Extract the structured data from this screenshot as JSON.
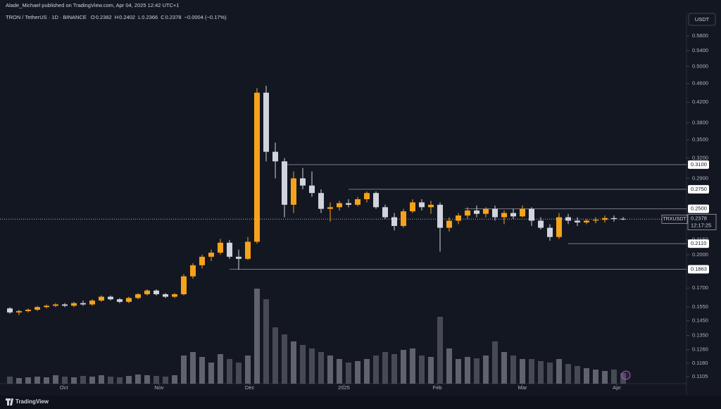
{
  "header": {
    "publisher": "Alade_Michael published on TradingView.com, Apr 04, 2025 12:42 UTC+1",
    "symbol": "TRON / TetherUS · 1D · BINANCE",
    "ohlc": [
      {
        "key": "O",
        "value": "0.2382"
      },
      {
        "key": "H",
        "value": "0.2402"
      },
      {
        "key": "L",
        "value": "0.2366"
      },
      {
        "key": "C",
        "value": "0.2378"
      }
    ],
    "change": "−0.0004 (−0.17%)",
    "currency": "USDT",
    "brand": "TradingView"
  },
  "chart_data": {
    "type": "candlestick",
    "log_scale": true,
    "up_color": "#f7a21b",
    "down_color": "#d1d4dc",
    "volume_color": "#7b7e88",
    "open": [
      0.154,
      0.151,
      0.152,
      0.153,
      0.155,
      0.156,
      0.157,
      0.156,
      0.158,
      0.157,
      0.16,
      0.163,
      0.161,
      0.159,
      0.162,
      0.165,
      0.168,
      0.165,
      0.163,
      0.165,
      0.18,
      0.19,
      0.198,
      0.202,
      0.212,
      0.198,
      0.196,
      0.213,
      0.44,
      0.33,
      0.315,
      0.255,
      0.29,
      0.28,
      0.27,
      0.25,
      0.252,
      0.257,
      0.255,
      0.262,
      0.27,
      0.252,
      0.24,
      0.23,
      0.247,
      0.258,
      0.252,
      0.255,
      0.228,
      0.236,
      0.242,
      0.248,
      0.244,
      0.25,
      0.24,
      0.245,
      0.241,
      0.25,
      0.236,
      0.228,
      0.218,
      0.24,
      0.236,
      0.234,
      0.236,
      0.237,
      0.239,
      0.2382
    ],
    "high": [
      0.155,
      0.153,
      0.154,
      0.156,
      0.157,
      0.158,
      0.158,
      0.159,
      0.16,
      0.161,
      0.164,
      0.164,
      0.162,
      0.163,
      0.166,
      0.169,
      0.169,
      0.166,
      0.166,
      0.182,
      0.192,
      0.2,
      0.205,
      0.216,
      0.215,
      0.205,
      0.218,
      0.45,
      0.455,
      0.345,
      0.32,
      0.3,
      0.305,
      0.3,
      0.275,
      0.258,
      0.26,
      0.262,
      0.265,
      0.272,
      0.272,
      0.255,
      0.245,
      0.25,
      0.262,
      0.262,
      0.26,
      0.258,
      0.24,
      0.245,
      0.252,
      0.254,
      0.252,
      0.254,
      0.248,
      0.25,
      0.254,
      0.252,
      0.24,
      0.232,
      0.245,
      0.244,
      0.24,
      0.238,
      0.24,
      0.242,
      0.242,
      0.2402
    ],
    "low": [
      0.15,
      0.149,
      0.151,
      0.152,
      0.154,
      0.155,
      0.155,
      0.155,
      0.156,
      0.156,
      0.159,
      0.16,
      0.158,
      0.158,
      0.161,
      0.164,
      0.164,
      0.162,
      0.162,
      0.164,
      0.178,
      0.187,
      0.194,
      0.2,
      0.196,
      0.186,
      0.195,
      0.211,
      0.315,
      0.29,
      0.24,
      0.245,
      0.275,
      0.265,
      0.245,
      0.235,
      0.248,
      0.252,
      0.253,
      0.258,
      0.25,
      0.238,
      0.225,
      0.228,
      0.245,
      0.248,
      0.244,
      0.203,
      0.224,
      0.232,
      0.238,
      0.24,
      0.24,
      0.236,
      0.232,
      0.238,
      0.24,
      0.23,
      0.226,
      0.214,
      0.216,
      0.232,
      0.23,
      0.232,
      0.233,
      0.234,
      0.235,
      0.2366
    ],
    "close": [
      0.151,
      0.152,
      0.153,
      0.155,
      0.156,
      0.157,
      0.156,
      0.158,
      0.157,
      0.16,
      0.163,
      0.161,
      0.159,
      0.162,
      0.165,
      0.168,
      0.165,
      0.163,
      0.165,
      0.18,
      0.19,
      0.198,
      0.202,
      0.212,
      0.198,
      0.196,
      0.213,
      0.44,
      0.33,
      0.315,
      0.255,
      0.29,
      0.28,
      0.27,
      0.25,
      0.252,
      0.257,
      0.255,
      0.262,
      0.27,
      0.252,
      0.24,
      0.23,
      0.247,
      0.258,
      0.252,
      0.255,
      0.228,
      0.236,
      0.242,
      0.248,
      0.244,
      0.25,
      0.24,
      0.245,
      0.241,
      0.25,
      0.236,
      0.228,
      0.218,
      0.24,
      0.236,
      0.234,
      0.236,
      0.237,
      0.239,
      0.238,
      0.2378
    ],
    "volume": [
      10,
      8,
      9,
      10,
      9,
      12,
      10,
      9,
      11,
      10,
      12,
      10,
      9,
      11,
      13,
      12,
      11,
      10,
      12,
      40,
      45,
      38,
      30,
      42,
      35,
      30,
      40,
      135,
      120,
      80,
      70,
      60,
      55,
      50,
      45,
      40,
      35,
      30,
      32,
      35,
      40,
      45,
      42,
      48,
      50,
      40,
      38,
      95,
      50,
      35,
      38,
      36,
      40,
      60,
      45,
      40,
      35,
      35,
      32,
      30,
      35,
      28,
      25,
      22,
      20,
      18,
      20,
      15
    ],
    "vlim": [
      0,
      150
    ],
    "ylim": [
      0.1105,
      0.58
    ],
    "yticks": [
      {
        "value": 0.58,
        "label": "0.5800"
      },
      {
        "value": 0.54,
        "label": "0.5400"
      },
      {
        "value": 0.5,
        "label": "0.5000"
      },
      {
        "value": 0.46,
        "label": "0.4600"
      },
      {
        "value": 0.42,
        "label": "0.4200"
      },
      {
        "value": 0.38,
        "label": "0.3800"
      },
      {
        "value": 0.35,
        "label": "0.3500"
      },
      {
        "value": 0.32,
        "label": "0.3200"
      },
      {
        "value": 0.29,
        "label": "0.2900"
      },
      {
        "value": 0.215,
        "label": "0.2150"
      },
      {
        "value": 0.2,
        "label": "0.2000"
      },
      {
        "value": 0.17,
        "label": "0.1700"
      },
      {
        "value": 0.155,
        "label": "0.1550"
      },
      {
        "value": 0.145,
        "label": "0.1450"
      },
      {
        "value": 0.135,
        "label": "0.1350"
      },
      {
        "value": 0.126,
        "label": "0.1260"
      },
      {
        "value": 0.118,
        "label": "0.1180"
      },
      {
        "value": 0.1105,
        "label": "0.1105"
      }
    ],
    "xticks": [
      {
        "value": 5.9,
        "label": "Oct"
      },
      {
        "value": 16.3,
        "label": "Nov"
      },
      {
        "value": 26.2,
        "label": "Dec"
      },
      {
        "value": 36.5,
        "label": "2025"
      },
      {
        "value": 46.7,
        "label": "Feb"
      },
      {
        "value": 56,
        "label": "Mar"
      },
      {
        "value": 66.3,
        "label": "Apr"
      }
    ],
    "levels": [
      {
        "value": 0.31,
        "label": "0.3100",
        "from": 29.7
      },
      {
        "value": 0.275,
        "label": "0.2750",
        "from": 37
      },
      {
        "value": 0.25,
        "label": "0.2500",
        "from": 49.7
      },
      {
        "value": 0.211,
        "label": "0.2110",
        "from": 61
      },
      {
        "value": 0.1863,
        "label": "0.1863",
        "from": 24
      }
    ],
    "last_price": {
      "symbol": "TRXUSDT",
      "value": 0.2378,
      "label": "0.2378",
      "countdown": "12:17:25"
    }
  }
}
